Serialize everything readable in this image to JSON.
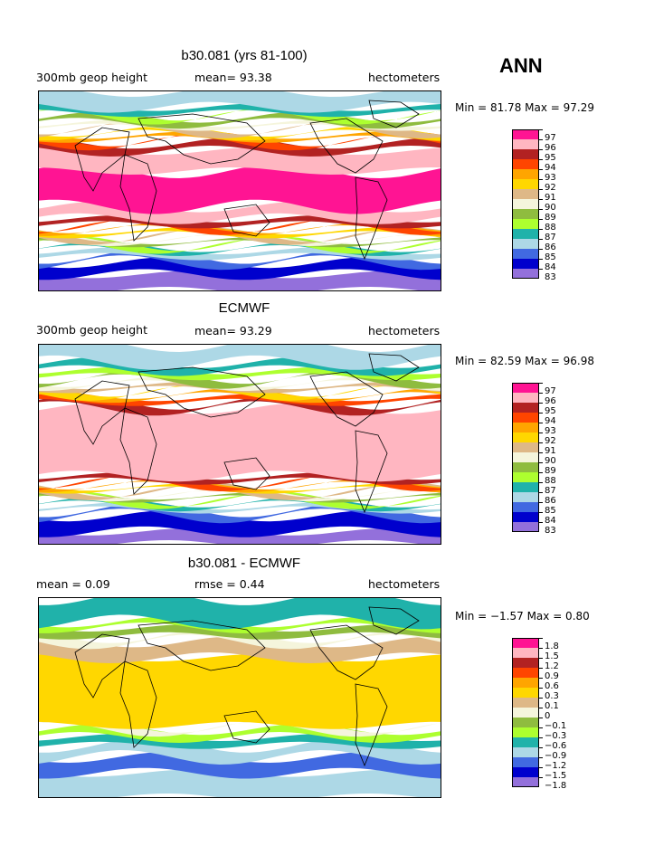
{
  "season": "ANN",
  "panels": [
    {
      "title": "b30.081 (yrs 81-100)",
      "left_label": "300mb geop height",
      "center_label": "mean=  93.38",
      "right_label": "hectometers",
      "minmax": "Min =  81.78 Max =  97.29",
      "legend_labels": [
        "97",
        "96",
        "95",
        "94",
        "93",
        "92",
        "91",
        "90",
        "89",
        "88",
        "87",
        "86",
        "85",
        "84",
        "83"
      ],
      "legend_colors": [
        "#ff1493",
        "#ffb6c1",
        "#b22222",
        "#ff4500",
        "#ffa500",
        "#ffd700",
        "#deb887",
        "#f5f5dc",
        "#8fbc3f",
        "#adff2f",
        "#20b2aa",
        "#add8e6",
        "#4169e1",
        "#0000cd",
        "#9370db"
      ],
      "bands": [
        {
          "color": "#9370db",
          "y0": 0.92,
          "y1": 1.0
        },
        {
          "color": "#0000cd",
          "y0": 0.86,
          "y1": 0.92
        },
        {
          "color": "#4169e1",
          "y0": 0.83,
          "y1": 0.86
        },
        {
          "color": "#add8e6",
          "y0": 0.8,
          "y1": 0.83
        },
        {
          "color": "#20b2aa",
          "y0": 0.78,
          "y1": 0.8
        },
        {
          "color": "#adff2f",
          "y0": 0.765,
          "y1": 0.78
        },
        {
          "color": "#8fbc3f",
          "y0": 0.75,
          "y1": 0.765
        },
        {
          "color": "#f5f5dc",
          "y0": 0.735,
          "y1": 0.75
        },
        {
          "color": "#deb887",
          "y0": 0.72,
          "y1": 0.735
        },
        {
          "color": "#ffd700",
          "y0": 0.7,
          "y1": 0.72
        },
        {
          "color": "#ffa500",
          "y0": 0.685,
          "y1": 0.7
        },
        {
          "color": "#ff4500",
          "y0": 0.67,
          "y1": 0.685
        },
        {
          "color": "#b22222",
          "y0": 0.64,
          "y1": 0.67
        },
        {
          "color": "#ffb6c1",
          "y0": 0.58,
          "y1": 0.64
        },
        {
          "color": "#ff1493",
          "y0": 0.4,
          "y1": 0.58
        },
        {
          "color": "#ffb6c1",
          "y0": 0.3,
          "y1": 0.4
        },
        {
          "color": "#b22222",
          "y0": 0.26,
          "y1": 0.3
        },
        {
          "color": "#ff4500",
          "y0": 0.24,
          "y1": 0.26
        },
        {
          "color": "#ffa500",
          "y0": 0.22,
          "y1": 0.24
        },
        {
          "color": "#ffd700",
          "y0": 0.2,
          "y1": 0.22
        },
        {
          "color": "#deb887",
          "y0": 0.18,
          "y1": 0.2
        },
        {
          "color": "#f5f5dc",
          "y0": 0.16,
          "y1": 0.18
        },
        {
          "color": "#8fbc3f",
          "y0": 0.13,
          "y1": 0.16
        },
        {
          "color": "#adff2f",
          "y0": 0.11,
          "y1": 0.13
        },
        {
          "color": "#20b2aa",
          "y0": 0.08,
          "y1": 0.11
        },
        {
          "color": "#add8e6",
          "y0": 0.0,
          "y1": 0.08
        }
      ]
    },
    {
      "title": "ECMWF",
      "left_label": "300mb geop height",
      "center_label": "mean=  93.29",
      "right_label": "hectometers",
      "minmax": "Min =  82.59 Max =  96.98",
      "legend_labels": [
        "97",
        "96",
        "95",
        "94",
        "93",
        "92",
        "91",
        "90",
        "89",
        "88",
        "87",
        "86",
        "85",
        "84",
        "83"
      ],
      "legend_colors": [
        "#ff1493",
        "#ffb6c1",
        "#b22222",
        "#ff4500",
        "#ffa500",
        "#ffd700",
        "#deb887",
        "#f5f5dc",
        "#8fbc3f",
        "#adff2f",
        "#20b2aa",
        "#add8e6",
        "#4169e1",
        "#0000cd",
        "#9370db"
      ],
      "bands": [
        {
          "color": "#9370db",
          "y0": 0.94,
          "y1": 1.0
        },
        {
          "color": "#0000cd",
          "y0": 0.86,
          "y1": 0.94
        },
        {
          "color": "#4169e1",
          "y0": 0.83,
          "y1": 0.86
        },
        {
          "color": "#add8e6",
          "y0": 0.81,
          "y1": 0.83
        },
        {
          "color": "#20b2aa",
          "y0": 0.79,
          "y1": 0.81
        },
        {
          "color": "#adff2f",
          "y0": 0.775,
          "y1": 0.79
        },
        {
          "color": "#8fbc3f",
          "y0": 0.76,
          "y1": 0.775
        },
        {
          "color": "#f5f5dc",
          "y0": 0.745,
          "y1": 0.76
        },
        {
          "color": "#deb887",
          "y0": 0.73,
          "y1": 0.745
        },
        {
          "color": "#ffd700",
          "y0": 0.715,
          "y1": 0.73
        },
        {
          "color": "#ffa500",
          "y0": 0.7,
          "y1": 0.715
        },
        {
          "color": "#ff4500",
          "y0": 0.685,
          "y1": 0.7
        },
        {
          "color": "#b22222",
          "y0": 0.66,
          "y1": 0.685
        },
        {
          "color": "#ffb6c1",
          "y0": 0.32,
          "y1": 0.66
        },
        {
          "color": "#b22222",
          "y0": 0.29,
          "y1": 0.32
        },
        {
          "color": "#ff4500",
          "y0": 0.265,
          "y1": 0.29
        },
        {
          "color": "#ffa500",
          "y0": 0.245,
          "y1": 0.265
        },
        {
          "color": "#ffd700",
          "y0": 0.225,
          "y1": 0.245
        },
        {
          "color": "#deb887",
          "y0": 0.205,
          "y1": 0.225
        },
        {
          "color": "#f5f5dc",
          "y0": 0.185,
          "y1": 0.205
        },
        {
          "color": "#8fbc3f",
          "y0": 0.16,
          "y1": 0.185
        },
        {
          "color": "#adff2f",
          "y0": 0.13,
          "y1": 0.16
        },
        {
          "color": "#20b2aa",
          "y0": 0.09,
          "y1": 0.13
        },
        {
          "color": "#add8e6",
          "y0": 0.0,
          "y1": 0.09
        }
      ]
    },
    {
      "title": "b30.081 - ECMWF",
      "left_label": "mean =   0.09",
      "center_label": "rmse =   0.44",
      "right_label": "hectometers",
      "minmax": "Min = −1.57 Max =   0.80",
      "legend_labels": [
        "1.8",
        "1.5",
        "1.2",
        "0.9",
        "0.6",
        "0.3",
        "0.1",
        "0",
        "−0.1",
        "−0.3",
        "−0.6",
        "−0.9",
        "−1.2",
        "−1.5",
        "−1.8"
      ],
      "legend_colors": [
        "#ff1493",
        "#ffb6c1",
        "#b22222",
        "#ff4500",
        "#ffa500",
        "#ffd700",
        "#deb887",
        "#f5f5dc",
        "#8fbc3f",
        "#adff2f",
        "#20b2aa",
        "#add8e6",
        "#4169e1",
        "#0000cd",
        "#9370db"
      ],
      "bands": [
        {
          "color": "#add8e6",
          "y0": 0.88,
          "y1": 1.0
        },
        {
          "color": "#4169e1",
          "y0": 0.8,
          "y1": 0.88
        },
        {
          "color": "#add8e6",
          "y0": 0.74,
          "y1": 0.8
        },
        {
          "color": "#20b2aa",
          "y0": 0.7,
          "y1": 0.74
        },
        {
          "color": "#adff2f",
          "y0": 0.66,
          "y1": 0.7
        },
        {
          "color": "#f5f5dc",
          "y0": 0.64,
          "y1": 0.66
        },
        {
          "color": "#ffd700",
          "y0": 0.3,
          "y1": 0.64
        },
        {
          "color": "#deb887",
          "y0": 0.22,
          "y1": 0.3
        },
        {
          "color": "#f5f5dc",
          "y0": 0.19,
          "y1": 0.22
        },
        {
          "color": "#8fbc3f",
          "y0": 0.15,
          "y1": 0.19
        },
        {
          "color": "#adff2f",
          "y0": 0.12,
          "y1": 0.15
        },
        {
          "color": "#20b2aa",
          "y0": 0.0,
          "y1": 0.12
        }
      ]
    }
  ]
}
